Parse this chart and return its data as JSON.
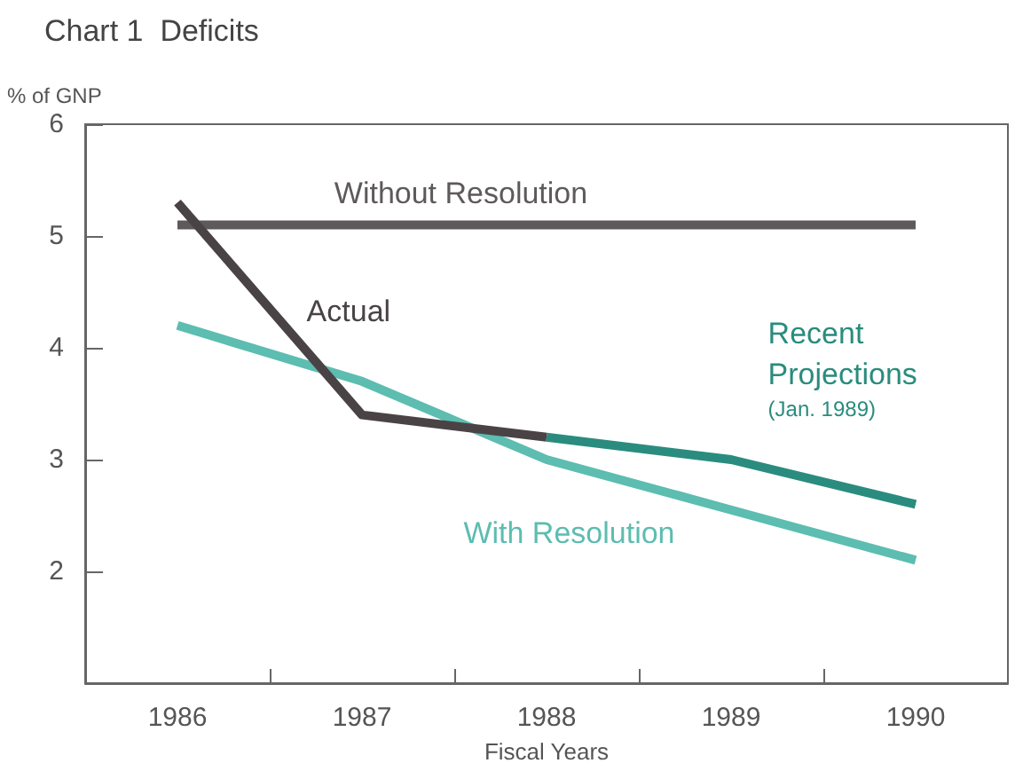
{
  "chart_data": {
    "type": "line",
    "title": "Chart 1  Deficits",
    "ylabel": "% of GNP",
    "xlabel": "Fiscal Years",
    "xlim": [
      1985.5,
      1990.5
    ],
    "xticks": [
      1986,
      {
        "value": 1986.5,
        "label": null
      },
      1987,
      {
        "value": 1987.5,
        "label": null
      },
      1988,
      {
        "value": 1988.5,
        "label": null
      },
      1989,
      {
        "value": 1989.5,
        "label": null
      },
      1990
    ],
    "ylim": [
      1,
      6
    ],
    "yticks": [
      2,
      3,
      4,
      5,
      6
    ],
    "grid": false,
    "legend": false,
    "marker": "none",
    "line_style": "solid",
    "series": [
      {
        "name": "Without Resolution",
        "color": "#5e5a5c",
        "x": [
          1986,
          1987,
          1988,
          1989,
          1990
        ],
        "values": [
          5.1,
          5.1,
          5.1,
          5.1,
          5.1
        ]
      },
      {
        "name": "With Resolution",
        "color": "#5cbdb0",
        "x": [
          1986,
          1987,
          1988,
          1989,
          1990
        ],
        "values": [
          4.2,
          3.7,
          3.0,
          2.55,
          2.1
        ]
      },
      {
        "name": "Recent Projections (Jan. 1989)",
        "color": "#2a8c7e",
        "x": [
          1988,
          1989,
          1990
        ],
        "values": [
          3.2,
          3.0,
          2.6
        ]
      },
      {
        "name": "Actual",
        "color": "#4a4346",
        "x": [
          1986,
          1987,
          1988
        ],
        "values": [
          5.3,
          3.4,
          3.2
        ]
      }
    ]
  }
}
